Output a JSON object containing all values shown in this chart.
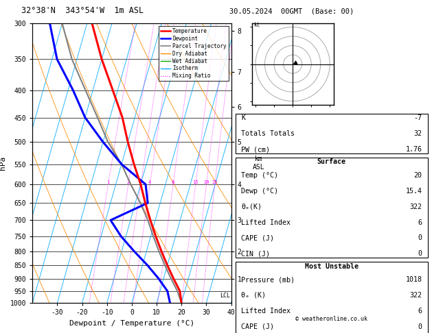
{
  "title_left": "32°38'N  343°54'W  1m ASL",
  "title_right": "30.05.2024  00GMT  (Base: 00)",
  "xlabel": "Dewpoint / Temperature (°C)",
  "ylabel_left": "hPa",
  "p_min": 300,
  "p_max": 1000,
  "t_min": -40,
  "t_max": 40,
  "skew_factor": 32,
  "temp_profile_p": [
    1000,
    950,
    900,
    850,
    800,
    750,
    700,
    650,
    600,
    550,
    500,
    450,
    400,
    350,
    300
  ],
  "temp_profile_t": [
    20,
    18,
    14,
    10,
    6,
    2,
    -2,
    -6,
    -10,
    -15,
    -20,
    -25,
    -32,
    -40,
    -48
  ],
  "dewp_profile_p": [
    1000,
    950,
    900,
    850,
    800,
    750,
    700,
    650,
    600,
    550,
    500,
    450,
    400,
    350,
    300
  ],
  "dewp_profile_t": [
    15.4,
    13,
    8,
    2,
    -5,
    -12,
    -18,
    -5,
    -8,
    -20,
    -30,
    -40,
    -48,
    -58,
    -65
  ],
  "parcel_profile_p": [
    1000,
    950,
    900,
    850,
    800,
    750,
    700,
    650,
    600,
    550,
    500,
    450,
    400,
    350,
    300
  ],
  "parcel_profile_t": [
    20,
    17,
    13,
    9,
    5,
    1,
    -3,
    -8,
    -14,
    -20,
    -28,
    -35,
    -43,
    -52,
    -60
  ],
  "temp_color": "#ff0000",
  "dewp_color": "#0000ff",
  "parcel_color": "#808080",
  "dry_adiabat_color": "#ff8c00",
  "wet_adiabat_color": "#00aa00",
  "isotherm_color": "#00aaff",
  "mixing_ratio_color": "#ff00ff",
  "background_color": "#ffffff",
  "pressure_levels": [
    300,
    350,
    400,
    450,
    500,
    550,
    600,
    650,
    700,
    750,
    800,
    850,
    900,
    950,
    1000
  ],
  "km_ticks": [
    1,
    2,
    3,
    4,
    5,
    6,
    7,
    8
  ],
  "km_pressures": [
    900,
    800,
    700,
    600,
    500,
    430,
    370,
    310
  ],
  "mixing_ratio_values": [
    1,
    2,
    3,
    4,
    8,
    15,
    20,
    25
  ],
  "lcl_pressure": 970,
  "legend_labels": [
    "Temperature",
    "Dewpoint",
    "Parcel Trajectory",
    "Dry Adiabat",
    "Wet Adiabat",
    "Isotherm",
    "Mixing Ratio"
  ],
  "copyright": "© weatheronline.co.uk"
}
